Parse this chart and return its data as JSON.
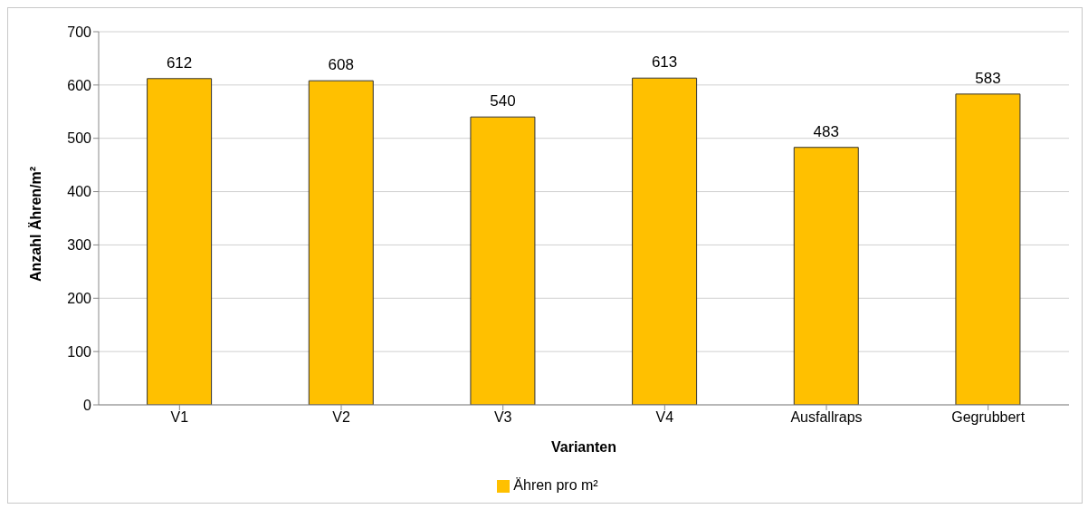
{
  "chart_data": {
    "type": "bar",
    "xlabel": "Varianten",
    "ylabel": "Anzahl Ähren/m²",
    "categories": [
      "V1",
      "V2",
      "V3",
      "V4",
      "Ausfallraps",
      "Gegrubbert"
    ],
    "series": [
      {
        "name": "Ähren pro m²",
        "color": "#ffc000",
        "values": [
          612,
          608,
          540,
          613,
          483,
          583
        ]
      }
    ],
    "ylim": [
      0,
      700
    ],
    "yticks": [
      0,
      100,
      200,
      300,
      400,
      500,
      600,
      700
    ],
    "grid": "y",
    "legend": "bottom",
    "data_labels": true
  }
}
